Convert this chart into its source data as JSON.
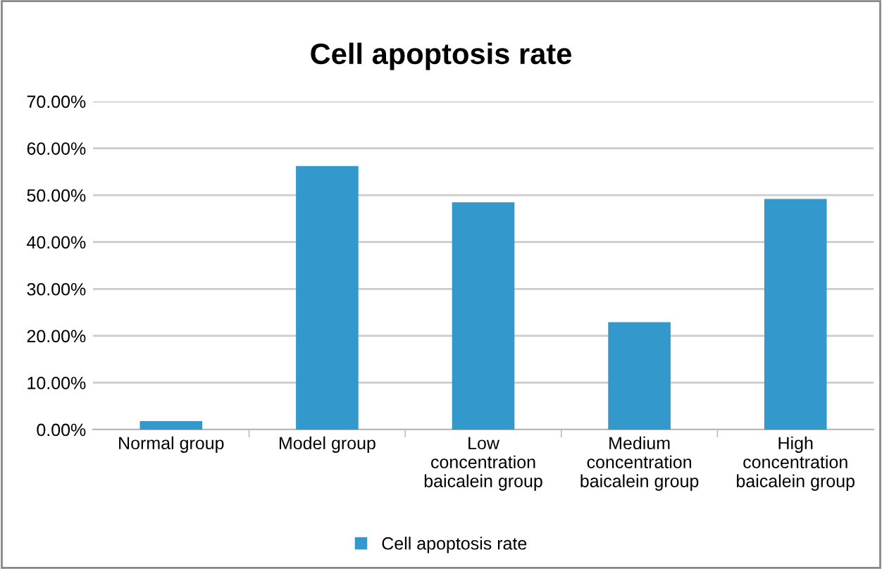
{
  "chart_data": {
    "type": "bar",
    "title": "Cell apoptosis rate",
    "categories": [
      "Normal group",
      "Model group",
      "Low\nconcentration\nbaicalein group",
      "Medium\nconcentration\nbaicalein group",
      "High\nconcentration\nbaicalein group"
    ],
    "series": [
      {
        "name": "Cell apoptosis rate",
        "color": "#3399cc",
        "values": [
          1.8,
          56.2,
          48.5,
          22.9,
          49.2
        ]
      }
    ],
    "ylim": [
      0,
      70
    ],
    "yticks": [
      {
        "value": 0,
        "label": "0.00%"
      },
      {
        "value": 10,
        "label": "10.00%"
      },
      {
        "value": 20,
        "label": "20.00%"
      },
      {
        "value": 30,
        "label": "30.00%"
      },
      {
        "value": 40,
        "label": "40.00%"
      },
      {
        "value": 50,
        "label": "50.00%"
      },
      {
        "value": 60,
        "label": "60.00%"
      },
      {
        "value": 70,
        "label": "70.00%"
      }
    ],
    "grid": "y",
    "legend": "bottom"
  }
}
